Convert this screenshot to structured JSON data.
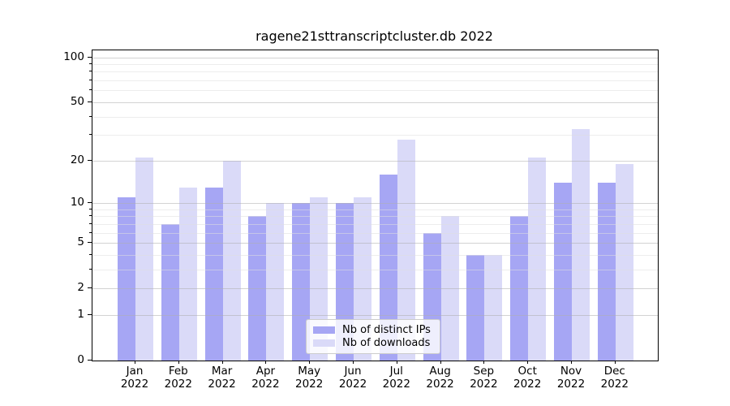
{
  "title": "ragene21sttranscriptcluster.db 2022",
  "chart_data": {
    "type": "bar",
    "title": "ragene21sttranscriptcluster.db 2022",
    "xlabel": "",
    "ylabel": "",
    "categories": [
      "Jan 2022",
      "Feb 2022",
      "Mar 2022",
      "Apr 2022",
      "May 2022",
      "Jun 2022",
      "Jul 2022",
      "Aug 2022",
      "Sep 2022",
      "Oct 2022",
      "Nov 2022",
      "Dec 2022"
    ],
    "series": [
      {
        "name": "Nb of distinct IPs",
        "color": "#a6a6f4",
        "values": [
          11,
          7,
          13,
          8,
          10,
          10,
          16,
          6,
          4,
          8,
          14,
          14
        ]
      },
      {
        "name": "Nb of downloads",
        "color": "#dadaf8",
        "values": [
          21,
          13,
          20,
          10,
          11,
          11,
          28,
          8,
          4,
          21,
          33,
          19
        ]
      }
    ],
    "yscale": "log10(value+1)",
    "ylim": [
      0,
      112
    ],
    "yticks": [
      0,
      1,
      2,
      5,
      10,
      20,
      50,
      100
    ],
    "yticks_minor": [
      3,
      4,
      6,
      7,
      8,
      9,
      30,
      40,
      60,
      70,
      80,
      90
    ],
    "grid": true,
    "grid_above_bars": true,
    "legend_position": "lower center"
  },
  "legend": {
    "items": [
      "Nb of distinct IPs",
      "Nb of downloads"
    ]
  },
  "colors": {
    "bar_distinct_ips": "#a6a6f4",
    "bar_downloads": "#dadaf8",
    "grid_major": "rgba(175,175,175,0.55)",
    "grid_minor": "rgba(222,222,222,0.55)",
    "axis": "#000000",
    "background": "#ffffff"
  }
}
